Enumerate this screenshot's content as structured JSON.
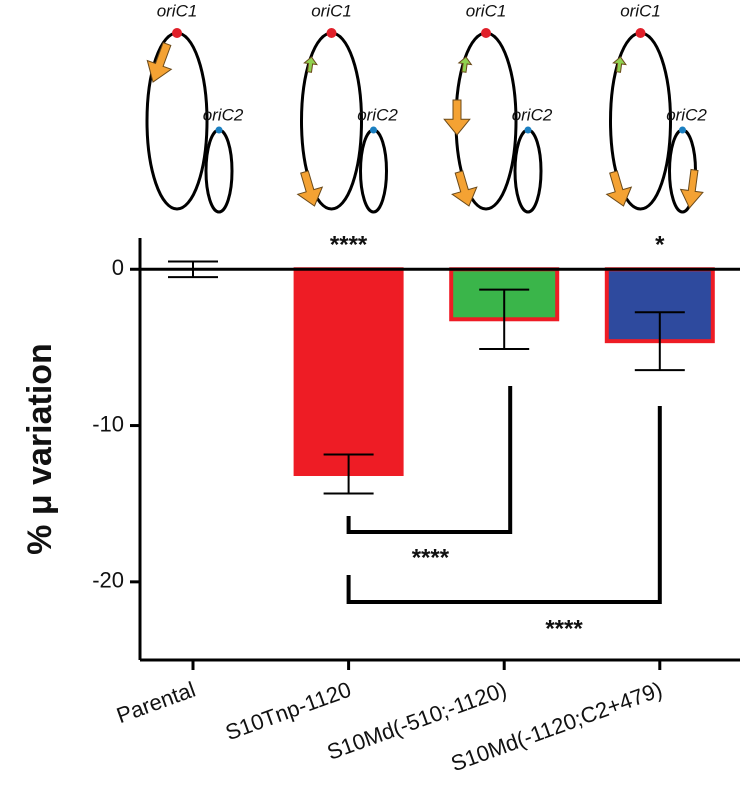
{
  "chart_data": {
    "type": "bar",
    "y_label": "% μ variation",
    "categories": [
      "Parental",
      "S10Tnp-1120",
      "S10Md(-510;-1120)",
      "S10Md(-1120;C2+479)"
    ],
    "values": [
      0,
      -13.1,
      -3.2,
      -4.6
    ],
    "errors": [
      0.5,
      1.25,
      1.9,
      1.85
    ],
    "colors": [
      "#ffffff",
      "#ee1c25",
      "#3ab54a",
      "#2e4a9e"
    ],
    "edge_color": "#ee1c25",
    "ylim": [
      -25,
      2
    ],
    "yticks": [
      0,
      -10,
      -20
    ],
    "significance": [
      "****",
      "*"
    ],
    "comparisons": [
      "****",
      "****"
    ],
    "diagrams": [
      {
        "origin1": "oriC1",
        "origin2": "oriC2"
      },
      {
        "origin1": "oriC1",
        "origin2": "oriC2"
      },
      {
        "origin1": "oriC1",
        "origin2": "oriC2"
      },
      {
        "origin1": "oriC1",
        "origin2": "oriC2"
      }
    ]
  }
}
